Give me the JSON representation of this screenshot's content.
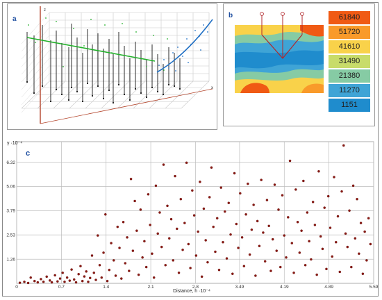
{
  "panel_a": {
    "label": "a",
    "axis_labels": {
      "z": "z",
      "x": "x",
      "y": "y"
    },
    "colors": {
      "green_curve": "#22b02a",
      "blue_curve": "#1f6fc4",
      "wells": "#111111",
      "grid": "#c8c8c8",
      "axis": "#b4452c"
    }
  },
  "panel_b": {
    "label": "b",
    "legend": [
      "61840",
      "51720",
      "41610",
      "31490",
      "21380",
      "11270",
      "1151"
    ],
    "legend_colors": [
      "#f05a14",
      "#f99a2a",
      "#f9d24a",
      "#c8dc6a",
      "#86cba4",
      "#3fa4d6",
      "#1f8ccd"
    ],
    "well_color": "#b0282c"
  },
  "chart_data": {
    "type": "scatter",
    "title": "",
    "panel_label": "c",
    "ylabel": "γ ·10⁻⁴",
    "xlabel": "Distance, h ·10⁻⁴",
    "xlim": [
      0,
      5.59
    ],
    "ylim": [
      0,
      7.4
    ],
    "x_ticks": [
      "0",
      "0.7",
      "1.4",
      "2.1",
      "2.8",
      "3.49",
      "4.19",
      "4.89",
      "5.59"
    ],
    "x_tick_values": [
      0,
      0.7,
      1.4,
      2.1,
      2.8,
      3.49,
      4.19,
      4.89,
      5.59
    ],
    "y_ticks": [
      "1.26",
      "2.53",
      "3.79",
      "5.06",
      "6.32"
    ],
    "y_tick_values": [
      1.26,
      2.53,
      3.79,
      5.06,
      6.32
    ],
    "grid": true,
    "marker_color": "#8b1a14",
    "points_note": "",
    "series": [
      {
        "values": [
          [
            0.05,
            0.03
          ],
          [
            0.12,
            0.08
          ],
          [
            0.18,
            0.02
          ],
          [
            0.22,
            0.3
          ],
          [
            0.28,
            0.12
          ],
          [
            0.33,
            0.05
          ],
          [
            0.38,
            0.22
          ],
          [
            0.42,
            0.08
          ],
          [
            0.47,
            0.35
          ],
          [
            0.52,
            0.15
          ],
          [
            0.55,
            0.05
          ],
          [
            0.6,
            0.42
          ],
          [
            0.64,
            0.1
          ],
          [
            0.68,
            0.25
          ],
          [
            0.72,
            0.55
          ],
          [
            0.75,
            0.08
          ],
          [
            0.79,
            0.3
          ],
          [
            0.83,
            0.14
          ],
          [
            0.86,
            0.72
          ],
          [
            0.9,
            0.2
          ],
          [
            0.93,
            0.05
          ],
          [
            0.97,
            0.48
          ],
          [
            1.0,
            0.9
          ],
          [
            1.03,
            0.12
          ],
          [
            1.06,
            0.36
          ],
          [
            1.09,
            0.62
          ],
          [
            1.12,
            0.08
          ],
          [
            1.15,
            0.28
          ],
          [
            1.18,
            1.45
          ],
          [
            1.21,
            0.55
          ],
          [
            1.24,
            0.18
          ],
          [
            1.27,
            2.5
          ],
          [
            1.3,
            0.95
          ],
          [
            1.33,
            0.3
          ],
          [
            1.36,
            1.6
          ],
          [
            1.39,
            3.6
          ],
          [
            1.42,
            0.12
          ],
          [
            1.45,
            0.7
          ],
          [
            1.48,
            2.1
          ],
          [
            1.52,
            1.2
          ],
          [
            1.55,
            0.4
          ],
          [
            1.58,
            2.95
          ],
          [
            1.61,
            1.85
          ],
          [
            1.64,
            0.25
          ],
          [
            1.67,
            3.2
          ],
          [
            1.7,
            1.05
          ],
          [
            1.73,
            2.4
          ],
          [
            1.76,
            0.65
          ],
          [
            1.79,
            5.45
          ],
          [
            1.82,
            1.7
          ],
          [
            1.85,
            4.3
          ],
          [
            1.88,
            2.75
          ],
          [
            1.91,
            0.45
          ],
          [
            1.94,
            3.85
          ],
          [
            1.97,
            1.35
          ],
          [
            2.0,
            2.2
          ],
          [
            2.03,
            0.85
          ],
          [
            2.06,
            4.65
          ],
          [
            2.09,
            3.05
          ],
          [
            2.12,
            1.55
          ],
          [
            2.15,
            0.3
          ],
          [
            2.18,
            5.1
          ],
          [
            2.21,
            2.6
          ],
          [
            2.24,
            3.7
          ],
          [
            2.27,
            1.9
          ],
          [
            2.3,
            6.2
          ],
          [
            2.33,
            0.95
          ],
          [
            2.36,
            4.05
          ],
          [
            2.39,
            2.35
          ],
          [
            2.42,
            3.35
          ],
          [
            2.45,
            1.2
          ],
          [
            2.48,
            5.6
          ],
          [
            2.51,
            2.85
          ],
          [
            2.54,
            0.55
          ],
          [
            2.57,
            4.4
          ],
          [
            2.6,
            1.75
          ],
          [
            2.63,
            3.15
          ],
          [
            2.66,
            6.3
          ],
          [
            2.69,
            2.05
          ],
          [
            2.72,
            0.8
          ],
          [
            2.75,
            4.85
          ],
          [
            2.78,
            3.55
          ],
          [
            2.81,
            1.45
          ],
          [
            2.84,
            2.7
          ],
          [
            2.87,
            5.3
          ],
          [
            2.9,
            0.35
          ],
          [
            2.93,
            3.9
          ],
          [
            2.96,
            2.25
          ],
          [
            2.99,
            1.1
          ],
          [
            3.02,
            4.5
          ],
          [
            3.05,
            6.05
          ],
          [
            3.08,
            2.95
          ],
          [
            3.11,
            1.65
          ],
          [
            3.14,
            3.4
          ],
          [
            3.17,
            0.7
          ],
          [
            3.2,
            5.0
          ],
          [
            3.23,
            2.15
          ],
          [
            3.26,
            3.75
          ],
          [
            3.29,
            1.3
          ],
          [
            3.32,
            4.2
          ],
          [
            3.35,
            2.55
          ],
          [
            3.38,
            0.5
          ],
          [
            3.41,
            5.75
          ],
          [
            3.44,
            3.1
          ],
          [
            3.47,
            1.85
          ],
          [
            3.5,
            4.7
          ],
          [
            3.53,
            2.4
          ],
          [
            3.56,
            0.9
          ],
          [
            3.59,
            3.6
          ],
          [
            3.62,
            5.2
          ],
          [
            3.65,
            1.5
          ],
          [
            3.68,
            2.8
          ],
          [
            3.71,
            4.1
          ],
          [
            3.74,
            0.4
          ],
          [
            3.77,
            3.25
          ],
          [
            3.8,
            1.95
          ],
          [
            3.83,
            5.4
          ],
          [
            3.86,
            2.65
          ],
          [
            3.89,
            1.15
          ],
          [
            3.92,
            4.35
          ],
          [
            3.95,
            3.0
          ],
          [
            3.98,
            0.65
          ],
          [
            4.01,
            2.3
          ],
          [
            4.04,
            5.15
          ],
          [
            4.07,
            1.7
          ],
          [
            4.1,
            3.85
          ],
          [
            4.13,
            0.85
          ],
          [
            4.16,
            4.6
          ],
          [
            4.19,
            2.5
          ],
          [
            4.22,
            1.35
          ],
          [
            4.25,
            3.45
          ],
          [
            4.28,
            6.4
          ],
          [
            4.31,
            2.1
          ],
          [
            4.34,
            0.55
          ],
          [
            4.37,
            4.9
          ],
          [
            4.4,
            3.2
          ],
          [
            4.43,
            1.6
          ],
          [
            4.46,
            2.75
          ],
          [
            4.49,
            5.35
          ],
          [
            4.52,
            0.95
          ],
          [
            4.55,
            3.7
          ],
          [
            4.58,
            2.2
          ],
          [
            4.61,
            1.25
          ],
          [
            4.64,
            4.25
          ],
          [
            4.67,
            3.05
          ],
          [
            4.7,
            0.45
          ],
          [
            4.73,
            5.85
          ],
          [
            4.76,
            2.45
          ],
          [
            4.79,
            1.8
          ],
          [
            4.82,
            3.95
          ],
          [
            4.85,
            0.75
          ],
          [
            4.88,
            4.55
          ],
          [
            4.91,
            2.9
          ],
          [
            4.94,
            1.4
          ],
          [
            4.97,
            5.55
          ],
          [
            5.0,
            2.15
          ],
          [
            5.03,
            3.5
          ],
          [
            5.06,
            0.6
          ],
          [
            5.09,
            4.8
          ],
          [
            5.12,
            7.2
          ],
          [
            5.15,
            2.6
          ],
          [
            5.18,
            1.9
          ],
          [
            5.21,
            3.8
          ],
          [
            5.24,
            0.85
          ],
          [
            5.27,
            5.1
          ],
          [
            5.3,
            2.35
          ],
          [
            5.33,
            4.4
          ],
          [
            5.36,
            1.55
          ],
          [
            5.39,
            3.15
          ],
          [
            5.42,
            0.5
          ],
          [
            5.45,
            2.7
          ],
          [
            5.48,
            1.2
          ],
          [
            5.51,
            3.4
          ],
          [
            5.54,
            2.05
          ]
        ]
      }
    ]
  }
}
